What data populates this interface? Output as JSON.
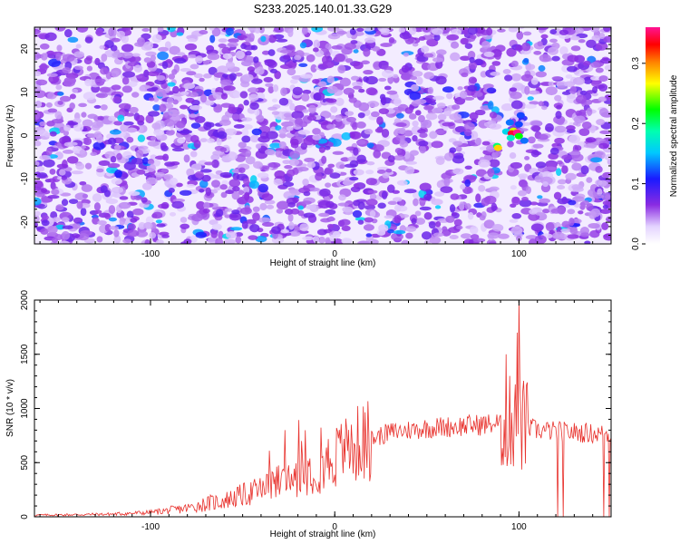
{
  "title": "S233.2025.140.01.33.G29",
  "chart_data": [
    {
      "type": "heatmap",
      "xlabel": "Height of straight line (km)",
      "ylabel": "Frequency (Hz)",
      "xlim": [
        -163,
        150
      ],
      "ylim": [
        -25,
        25
      ],
      "x_ticks": [
        "-100",
        "0",
        "100"
      ],
      "y_ticks": [
        "20",
        "10",
        "0",
        "-10",
        "-20"
      ],
      "colorbar": {
        "label": "Normalized spectral amplitude",
        "range": [
          0,
          0.36
        ],
        "ticks": [
          "0.0",
          "0.1",
          "0.2",
          "0.3"
        ],
        "colormap": [
          "#ffffff",
          "#8a2be2",
          "#1010ff",
          "#00ffff",
          "#00ff00",
          "#ffff00",
          "#ff8000",
          "#ff0000",
          "#ff1493"
        ]
      },
      "hotspot": {
        "x": 97,
        "y": 0.5,
        "peak": 0.36
      },
      "background_level": 0.06,
      "grid": false
    },
    {
      "type": "line",
      "xlabel": "Height of straight line (km)",
      "ylabel": "SNR (10 * v/v)",
      "xlim": [
        -163,
        150
      ],
      "ylim": [
        0,
        2000
      ],
      "x_ticks": [
        "-100",
        "0",
        "100"
      ],
      "y_ticks": [
        "0",
        "500",
        "1000",
        "1500",
        "2000"
      ],
      "line_color": "#e8312c",
      "grid": false,
      "series": [
        {
          "x": [
            -163,
            -140,
            -120,
            -100,
            -80,
            -70,
            -60,
            -50,
            -40,
            -30,
            -20,
            -10,
            0,
            10,
            20,
            30,
            40,
            50,
            60,
            70,
            80,
            88,
            92,
            95,
            100,
            105,
            110,
            120,
            130,
            140,
            150
          ],
          "values": [
            15,
            20,
            25,
            40,
            80,
            120,
            150,
            200,
            250,
            320,
            400,
            450,
            550,
            650,
            720,
            780,
            800,
            820,
            830,
            840,
            850,
            860,
            870,
            880,
            850,
            820,
            800,
            790,
            780,
            770,
            760
          ],
          "spikes": [
            {
              "x": -27,
              "y": 800
            },
            {
              "x": -18,
              "y": 700
            },
            {
              "x": 5,
              "y": 720
            },
            {
              "x": 93,
              "y": 1500
            },
            {
              "x": 95,
              "y": 1300
            },
            {
              "x": 99,
              "y": 1700
            },
            {
              "x": 100,
              "y": 2000
            },
            {
              "x": 102,
              "y": 1150
            },
            {
              "x": 121,
              "y": 0
            },
            {
              "x": 124,
              "y": 0
            },
            {
              "x": 146,
              "y": 0
            },
            {
              "x": 149,
              "y": 0
            }
          ]
        }
      ]
    }
  ]
}
